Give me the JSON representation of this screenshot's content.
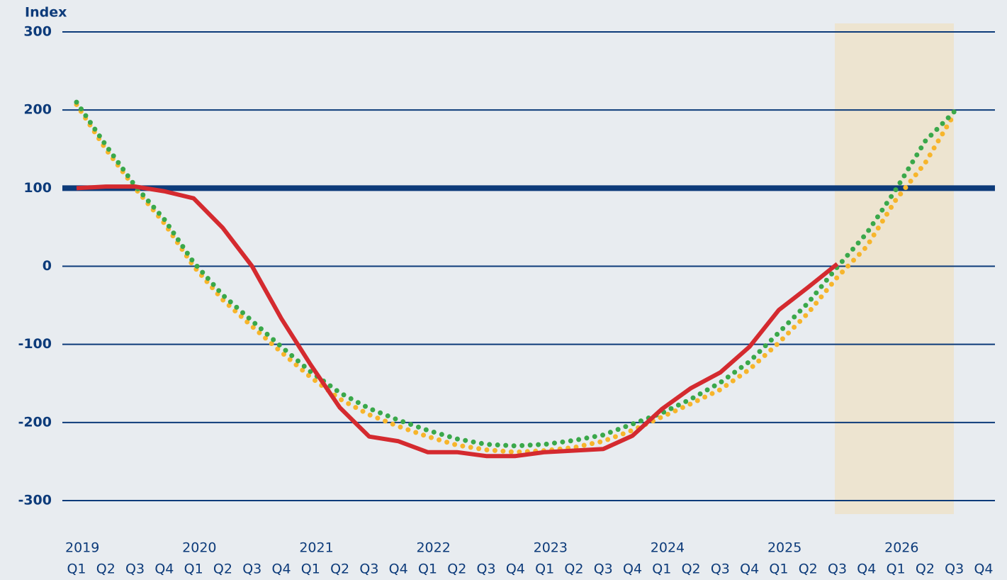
{
  "chart_data": {
    "type": "line",
    "y_label": "Index",
    "categories": [
      "Q1",
      "Q2",
      "Q3",
      "Q4",
      "Q1",
      "Q2",
      "Q3",
      "Q4",
      "Q1",
      "Q2",
      "Q3",
      "Q4",
      "Q1",
      "Q2",
      "Q3",
      "Q4",
      "Q1",
      "Q2",
      "Q3",
      "Q4",
      "Q1",
      "Q2",
      "Q3",
      "Q4",
      "Q1",
      "Q2",
      "Q3",
      "Q4",
      "Q1",
      "Q2",
      "Q3",
      "Q4"
    ],
    "years": [
      "2019",
      "2020",
      "2021",
      "2022",
      "2023",
      "2024",
      "2025",
      "2026"
    ],
    "series": [
      {
        "color": "#f7b52b",
        "style": "dotted",
        "values": [
          207,
          150,
          100,
          55,
          0,
          -43,
          -77,
          -110,
          -142,
          -170,
          -190,
          -205,
          -218,
          -229,
          -235,
          -238,
          -236,
          -232,
          -224,
          -210,
          -193,
          -176,
          -158,
          -132,
          -98,
          -60,
          -14,
          25,
          85,
          132,
          195,
          null
        ]
      },
      {
        "color": "#3aa84a",
        "style": "dotted",
        "values": [
          210,
          155,
          103,
          60,
          5,
          -37,
          -70,
          -103,
          -135,
          -162,
          -182,
          -197,
          -210,
          -221,
          -228,
          -230,
          -228,
          -223,
          -216,
          -202,
          -188,
          -170,
          -149,
          -122,
          -85,
          -47,
          -1,
          42,
          98,
          160,
          198,
          null
        ]
      },
      {
        "color": "#d42a2f",
        "style": "solid",
        "values": [
          100,
          102,
          102,
          96,
          87,
          49,
          0,
          -67,
          -126,
          -181,
          -218,
          -224,
          -238,
          -238,
          -243,
          -243,
          -238,
          -236,
          -234,
          -217,
          -183,
          -156,
          -136,
          -103,
          -56,
          -27,
          3,
          null,
          null,
          null,
          null,
          null
        ]
      }
    ],
    "ylim": [
      -300,
      300
    ],
    "yticks": [
      300,
      200,
      100,
      0,
      -100,
      -200,
      -300
    ],
    "baseline": 100,
    "grid": true,
    "grid_color": "#0d3b7a"
  }
}
